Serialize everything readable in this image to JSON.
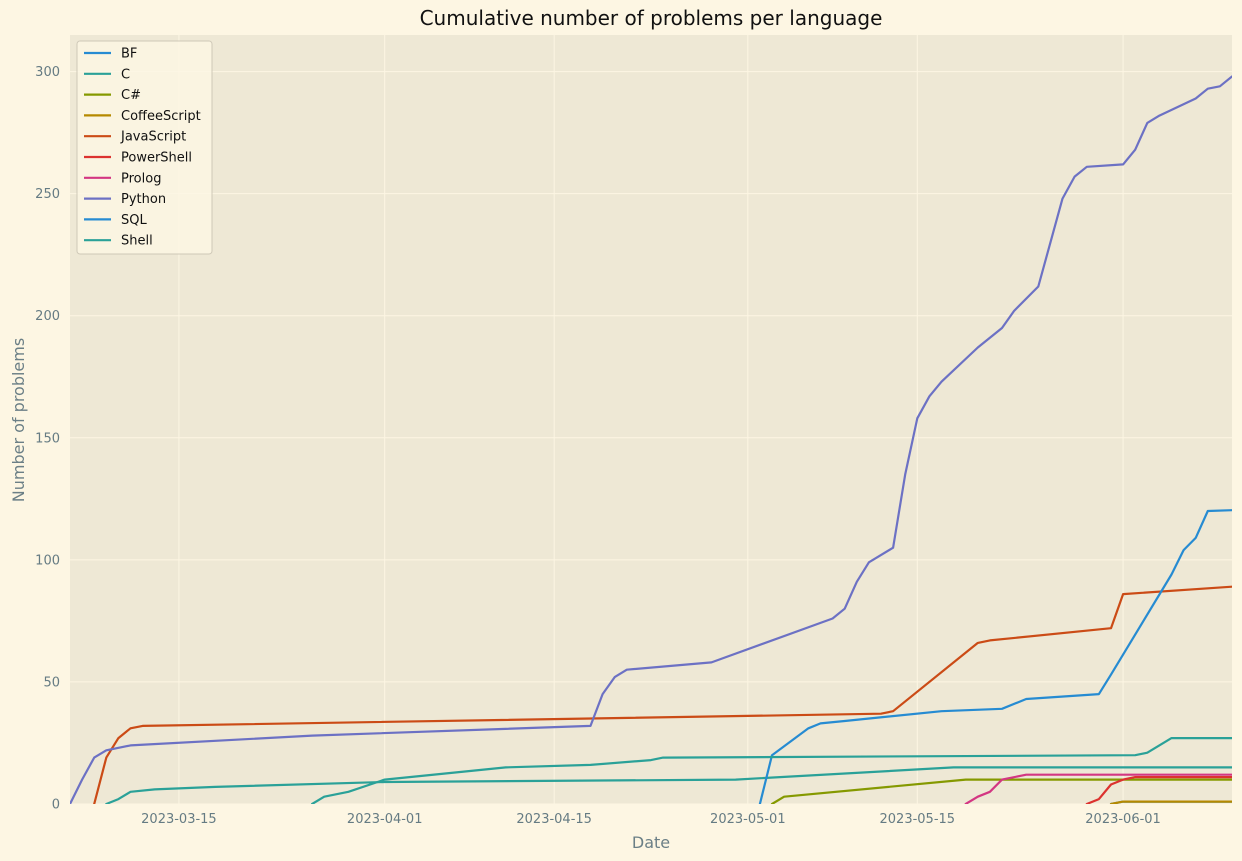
{
  "chart_data": {
    "type": "line",
    "title": "Cumulative number of problems per language",
    "xlabel": "Date",
    "ylabel": "Number of problems",
    "xlim": [
      "2023-03-06",
      "2023-06-10"
    ],
    "ylim": [
      0,
      315
    ],
    "xticks": [
      "2023-03-15",
      "2023-04-01",
      "2023-04-15",
      "2023-05-01",
      "2023-05-15",
      "2023-06-01"
    ],
    "yticks": [
      0,
      50,
      100,
      150,
      200,
      250,
      300
    ],
    "grid": true,
    "legend_position": "top-left",
    "background": "#eee8d5",
    "series": [
      {
        "name": "BF",
        "color": "#268bd2",
        "points": [
          [
            "2023-05-31",
            0
          ],
          [
            "2023-06-01",
            1
          ],
          [
            "2023-06-10",
            1
          ]
        ]
      },
      {
        "name": "C",
        "color": "#2aa198",
        "points": [
          [
            "2023-03-09",
            0
          ],
          [
            "2023-03-10",
            2
          ],
          [
            "2023-03-11",
            5
          ],
          [
            "2023-03-13",
            6
          ],
          [
            "2023-03-18",
            7
          ],
          [
            "2023-04-01",
            9
          ],
          [
            "2023-04-30",
            10
          ],
          [
            "2023-05-18",
            15
          ],
          [
            "2023-06-10",
            15
          ]
        ]
      },
      {
        "name": "C#",
        "color": "#859900",
        "points": [
          [
            "2023-05-03",
            0
          ],
          [
            "2023-05-04",
            3
          ],
          [
            "2023-05-19",
            10
          ],
          [
            "2023-06-10",
            10
          ]
        ]
      },
      {
        "name": "CoffeeScript",
        "color": "#b58900",
        "points": [
          [
            "2023-05-31",
            0
          ],
          [
            "2023-06-01",
            1
          ],
          [
            "2023-06-10",
            1
          ]
        ]
      },
      {
        "name": "JavaScript",
        "color": "#cb4b16",
        "points": [
          [
            "2023-03-08",
            0
          ],
          [
            "2023-03-09",
            19
          ],
          [
            "2023-03-10",
            27
          ],
          [
            "2023-03-11",
            31
          ],
          [
            "2023-03-12",
            32
          ],
          [
            "2023-05-12",
            37
          ],
          [
            "2023-05-13",
            38
          ],
          [
            "2023-05-20",
            66
          ],
          [
            "2023-05-21",
            67
          ],
          [
            "2023-05-31",
            72
          ],
          [
            "2023-06-01",
            86
          ],
          [
            "2023-06-10",
            89
          ]
        ]
      },
      {
        "name": "PowerShell",
        "color": "#dc322f",
        "points": [
          [
            "2023-05-29",
            0
          ],
          [
            "2023-05-30",
            2
          ],
          [
            "2023-05-31",
            8
          ],
          [
            "2023-06-01",
            10
          ],
          [
            "2023-06-02",
            11
          ],
          [
            "2023-06-10",
            11
          ]
        ]
      },
      {
        "name": "Prolog",
        "color": "#d33682",
        "points": [
          [
            "2023-05-19",
            0
          ],
          [
            "2023-05-20",
            3
          ],
          [
            "2023-05-21",
            5
          ],
          [
            "2023-05-22",
            10
          ],
          [
            "2023-05-24",
            12
          ],
          [
            "2023-06-10",
            12
          ]
        ]
      },
      {
        "name": "Python",
        "color": "#6c71c4",
        "points": [
          [
            "2023-03-06",
            0
          ],
          [
            "2023-03-07",
            10
          ],
          [
            "2023-03-08",
            19
          ],
          [
            "2023-03-09",
            22
          ],
          [
            "2023-03-11",
            24
          ],
          [
            "2023-03-26",
            28
          ],
          [
            "2023-04-18",
            32
          ],
          [
            "2023-04-19",
            45
          ],
          [
            "2023-04-20",
            52
          ],
          [
            "2023-04-21",
            55
          ],
          [
            "2023-04-28",
            58
          ],
          [
            "2023-05-08",
            76
          ],
          [
            "2023-05-09",
            80
          ],
          [
            "2023-05-10",
            91
          ],
          [
            "2023-05-11",
            99
          ],
          [
            "2023-05-13",
            105
          ],
          [
            "2023-05-14",
            135
          ],
          [
            "2023-05-15",
            158
          ],
          [
            "2023-05-16",
            167
          ],
          [
            "2023-05-17",
            173
          ],
          [
            "2023-05-20",
            187
          ],
          [
            "2023-05-22",
            195
          ],
          [
            "2023-05-23",
            202
          ],
          [
            "2023-05-25",
            212
          ],
          [
            "2023-05-27",
            248
          ],
          [
            "2023-05-28",
            257
          ],
          [
            "2023-05-29",
            261
          ],
          [
            "2023-06-01",
            262
          ],
          [
            "2023-06-02",
            268
          ],
          [
            "2023-06-03",
            279
          ],
          [
            "2023-06-04",
            282
          ],
          [
            "2023-06-07",
            289
          ],
          [
            "2023-06-08",
            293
          ],
          [
            "2023-06-09",
            294
          ],
          [
            "2023-06-10",
            298
          ],
          [
            "2023-06-14",
            300
          ]
        ]
      },
      {
        "name": "SQL",
        "color": "#268bd2",
        "points": [
          [
            "2023-05-02",
            0
          ],
          [
            "2023-05-03",
            20
          ],
          [
            "2023-05-06",
            31
          ],
          [
            "2023-05-07",
            33
          ],
          [
            "2023-05-09",
            34
          ],
          [
            "2023-05-17",
            38
          ],
          [
            "2023-05-22",
            39
          ],
          [
            "2023-05-24",
            43
          ],
          [
            "2023-05-30",
            45
          ],
          [
            "2023-05-31",
            53
          ],
          [
            "2023-06-05",
            94
          ],
          [
            "2023-06-06",
            104
          ],
          [
            "2023-06-07",
            109
          ],
          [
            "2023-06-08",
            120
          ],
          [
            "2023-06-14",
            121
          ]
        ]
      },
      {
        "name": "Shell",
        "color": "#2aa198",
        "points": [
          [
            "2023-03-26",
            0
          ],
          [
            "2023-03-27",
            3
          ],
          [
            "2023-03-29",
            5
          ],
          [
            "2023-04-01",
            10
          ],
          [
            "2023-04-11",
            15
          ],
          [
            "2023-04-18",
            16
          ],
          [
            "2023-04-23",
            18
          ],
          [
            "2023-04-24",
            19
          ],
          [
            "2023-06-02",
            20
          ],
          [
            "2023-06-03",
            21
          ],
          [
            "2023-06-05",
            27
          ],
          [
            "2023-06-14",
            27
          ]
        ]
      }
    ]
  }
}
